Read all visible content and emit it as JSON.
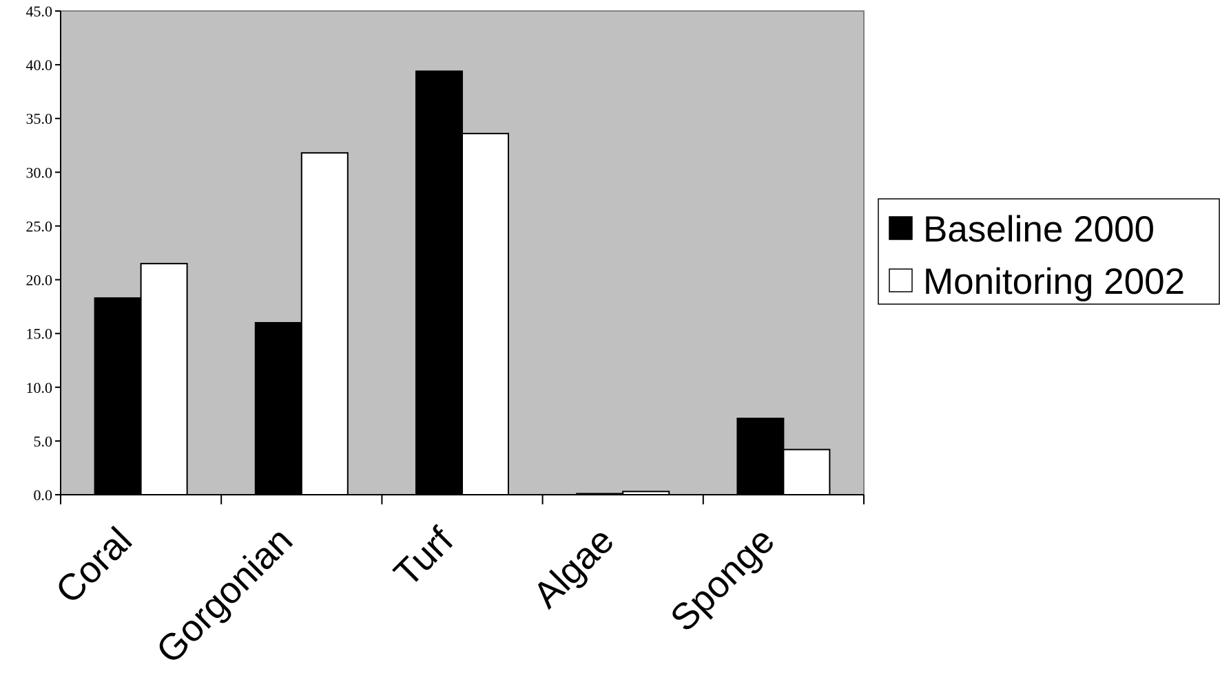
{
  "chart_data": {
    "type": "bar",
    "title": "",
    "xlabel": "",
    "ylabel": "",
    "categories": [
      "Coral",
      "Gorgonian",
      "Turf",
      "Algae",
      "Sponge"
    ],
    "series": [
      {
        "name": "Baseline 2000",
        "values": [
          18.3,
          16.0,
          39.4,
          0.1,
          7.1
        ],
        "color": "#000000"
      },
      {
        "name": "Monitoring 2002",
        "values": [
          21.5,
          31.8,
          33.6,
          0.3,
          4.2
        ],
        "color": "#ffffff"
      }
    ],
    "ylim": [
      0,
      45
    ],
    "yticks": [
      "0.0",
      "5.0",
      "10.0",
      "15.0",
      "20.0",
      "25.0",
      "30.0",
      "35.0",
      "40.0",
      "45.0"
    ],
    "plot_background": "#c0c0c0",
    "grid": false,
    "legend": {
      "placement": "right",
      "entries": [
        "Baseline 2000",
        "Monitoring 2002"
      ]
    }
  }
}
